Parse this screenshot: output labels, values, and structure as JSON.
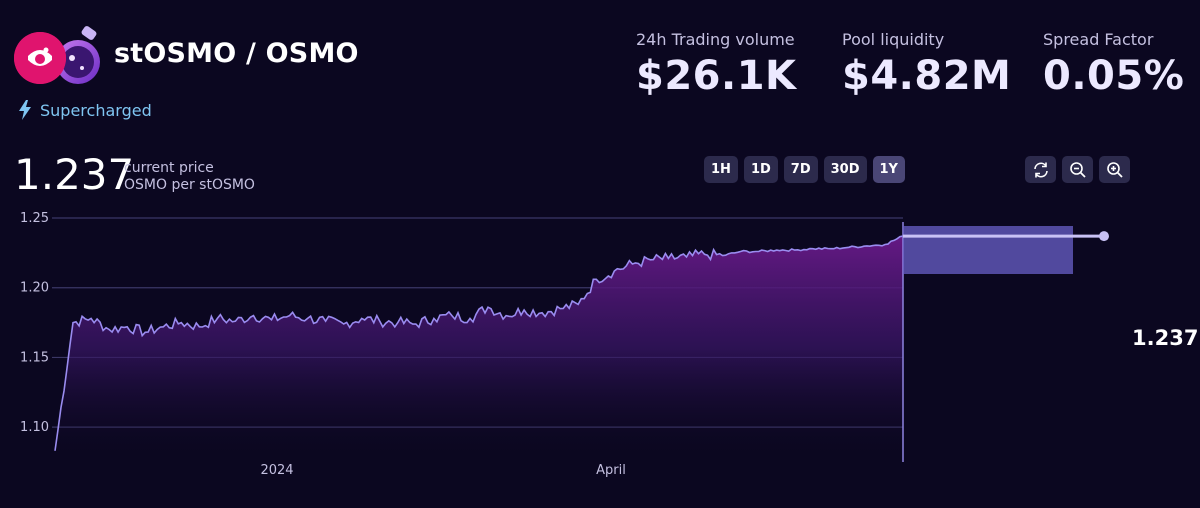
{
  "pool": {
    "title": "stOSMO / OSMO",
    "badge": "Supercharged",
    "colors": {
      "accent": "#7fc5f2",
      "token_a_bg": "#e0146e"
    }
  },
  "stats": [
    {
      "label": "24h Trading volume",
      "value": "$26.1K"
    },
    {
      "label": "Pool liquidity",
      "value": "$4.82M"
    },
    {
      "label": "Spread Factor",
      "value": "0.05%"
    }
  ],
  "price": {
    "value": "1.237",
    "caption": "current price",
    "unit": "OSMO per stOSMO"
  },
  "range_buttons": [
    "1H",
    "1D",
    "7D",
    "30D",
    "1Y"
  ],
  "range_selected": "1Y",
  "tools": [
    "refresh-icon",
    "zoom-out-icon",
    "zoom-in-icon"
  ],
  "chart_data": {
    "type": "line",
    "y_ticks": [
      "1.25",
      "1.20",
      "1.15",
      "1.10"
    ],
    "x_ticks": [
      "2024",
      "April"
    ],
    "ylim": [
      1.075,
      1.25
    ],
    "series": [
      {
        "values": [
          1.083,
          1.175,
          1.178,
          1.17,
          1.172,
          1.168,
          1.172,
          1.175,
          1.172,
          1.178,
          1.176,
          1.18,
          1.177,
          1.18,
          1.178,
          1.176,
          1.174,
          1.178,
          1.176,
          1.175,
          1.174,
          1.178,
          1.18,
          1.178,
          1.186,
          1.18,
          1.184,
          1.182,
          1.185,
          1.188,
          1.206,
          1.212,
          1.217,
          1.22,
          1.221,
          1.222,
          1.224,
          1.223,
          1.226,
          1.226,
          1.227,
          1.227,
          1.228,
          1.228,
          1.229,
          1.23,
          1.231,
          1.237
        ]
      }
    ],
    "grid": true,
    "current_price_label": "1.237"
  }
}
